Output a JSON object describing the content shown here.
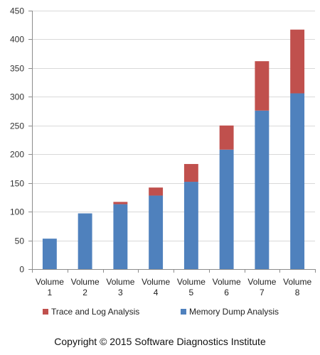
{
  "chart_data": {
    "type": "bar",
    "stacked": true,
    "categories": [
      [
        "Volume",
        "1"
      ],
      [
        "Volume",
        "2"
      ],
      [
        "Volume",
        "3"
      ],
      [
        "Volume",
        "4"
      ],
      [
        "Volume",
        "5"
      ],
      [
        "Volume",
        "6"
      ],
      [
        "Volume",
        "7"
      ],
      [
        "Volume",
        "8"
      ]
    ],
    "series": [
      {
        "name": "Memory Dump Analysis",
        "color": "#4f81bd",
        "values": [
          53,
          97,
          113,
          128,
          152,
          208,
          276,
          306
        ]
      },
      {
        "name": "Trace and Log Analysis",
        "color": "#c0504d",
        "values": [
          0,
          0,
          4,
          14,
          31,
          42,
          86,
          111
        ]
      }
    ],
    "legend_order": [
      1,
      0
    ],
    "legend_position": "bottom",
    "title": "",
    "xlabel": "",
    "ylabel": "",
    "ylim": [
      0,
      450
    ],
    "yticks": [
      0,
      50,
      100,
      150,
      200,
      250,
      300,
      350,
      400,
      450
    ],
    "grid": "horizontal",
    "grid_color": "#d9d9d9"
  },
  "footer": {
    "copyright": "Copyright © 2015 Software Diagnostics Institute"
  }
}
